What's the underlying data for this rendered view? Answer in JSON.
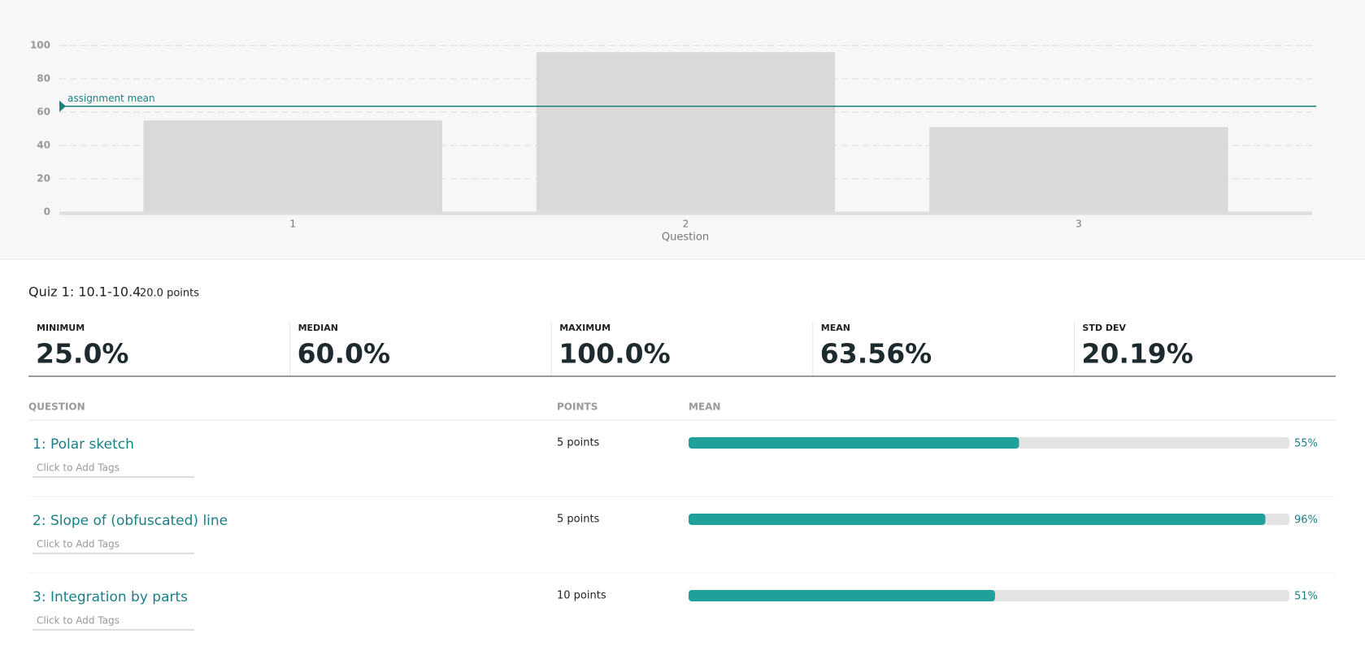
{
  "chart_data": {
    "type": "bar",
    "xlabel": "Question",
    "categories": [
      "1",
      "2",
      "3"
    ],
    "values": [
      55,
      96,
      51
    ],
    "color": "#d9d9d9",
    "ylim": [
      0,
      100
    ],
    "yticks": [
      0,
      20,
      40,
      60,
      80,
      100
    ],
    "grid": true,
    "mean_line": {
      "value": 63.56,
      "label": "assignment mean",
      "color": "#1f7f80"
    }
  },
  "header": {
    "title": "Quiz 1: 10.1-10.4",
    "points": "20.0 points"
  },
  "stats": [
    {
      "label": "MINIMUM",
      "value": "25.0%"
    },
    {
      "label": "MEDIAN",
      "value": "60.0%"
    },
    {
      "label": "MAXIMUM",
      "value": "100.0%"
    },
    {
      "label": "MEAN",
      "value": "63.56%"
    },
    {
      "label": "STD DEV",
      "value": "20.19%"
    }
  ],
  "table": {
    "columns": [
      "QUESTION",
      "POINTS",
      "MEAN"
    ],
    "bar_color": "#1fa09b",
    "rows": [
      {
        "title": "1: Polar sketch",
        "tags": "Click to Add Tags",
        "points": "5 points",
        "mean": 55,
        "mean_label": "55%"
      },
      {
        "title": "2: Slope of (obfuscated) line",
        "tags": "Click to Add Tags",
        "points": "5 points",
        "mean": 96,
        "mean_label": "96%"
      },
      {
        "title": "3: Integration by parts",
        "tags": "Click to Add Tags",
        "points": "10 points",
        "mean": 51,
        "mean_label": "51%"
      }
    ]
  }
}
